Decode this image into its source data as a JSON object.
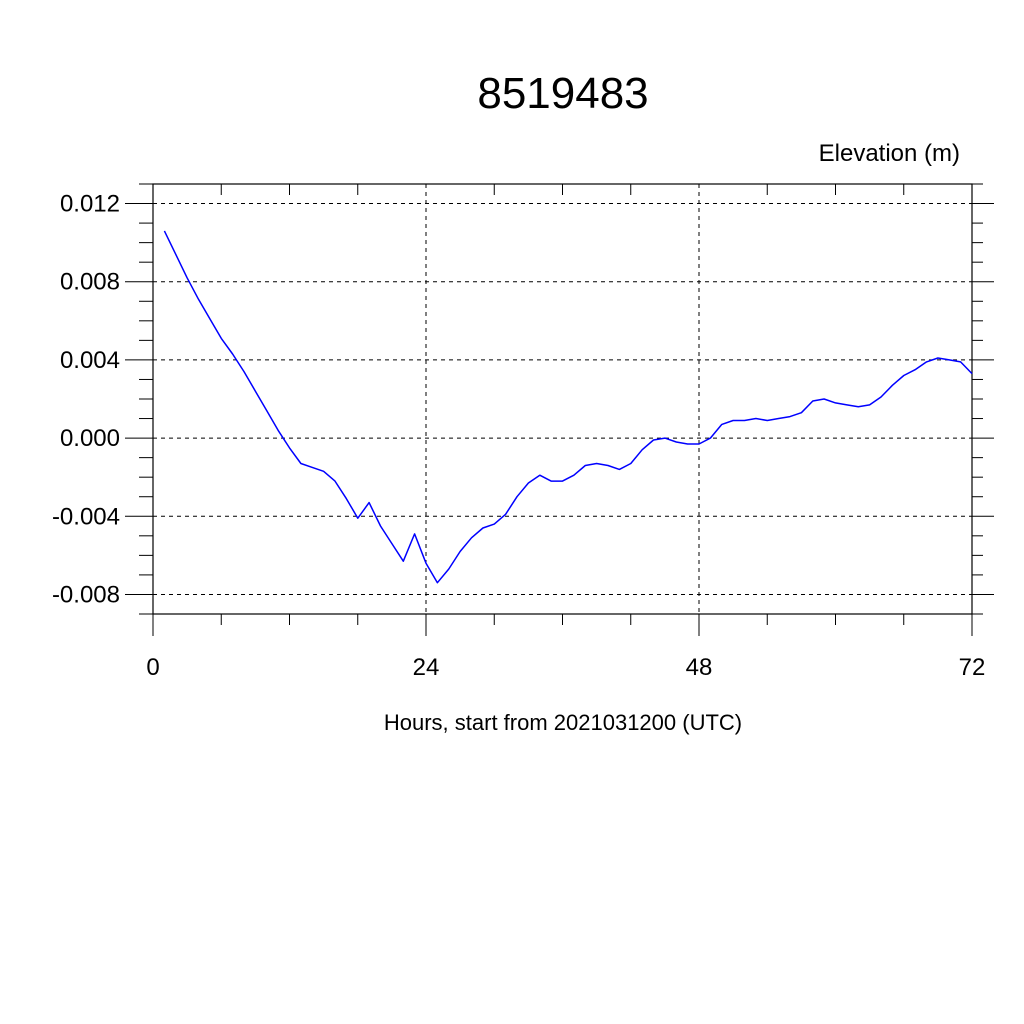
{
  "chart_data": {
    "type": "line",
    "title": "8519483",
    "ylabel": "Elevation (m)",
    "xlabel": "Hours, start from 2021031200 (UTC)",
    "xlim": [
      0,
      72
    ],
    "ylim": [
      -0.009,
      0.013
    ],
    "x_ticks": [
      0,
      24,
      48,
      72
    ],
    "x_tick_labels": [
      "0",
      "24",
      "48",
      "72"
    ],
    "y_ticks": [
      -0.008,
      -0.004,
      0.0,
      0.004,
      0.008,
      0.012
    ],
    "y_tick_labels": [
      "-0.008",
      "-0.004",
      "0.000",
      "0.004",
      "0.008",
      "0.012"
    ],
    "grid": true,
    "line_color": "#0000ff",
    "series": [
      {
        "x": [
          1,
          2,
          3,
          4,
          5,
          6,
          7,
          8,
          9,
          10,
          11,
          12,
          13,
          14,
          15,
          16,
          17,
          18,
          19,
          20,
          21,
          22,
          23,
          24,
          25,
          26,
          27,
          28,
          29,
          30,
          31,
          32,
          33,
          34,
          35,
          36,
          37,
          38,
          39,
          40,
          41,
          42,
          43,
          44,
          45,
          46,
          47,
          48,
          49,
          50,
          51,
          52,
          53,
          54,
          55,
          56,
          57,
          58,
          59,
          60,
          61,
          62,
          63,
          64,
          65,
          66,
          67,
          68,
          69,
          70,
          71,
          72
        ],
        "y": [
          0.0106,
          0.0094,
          0.0082,
          0.0071,
          0.0061,
          0.0051,
          0.0043,
          0.0034,
          0.0024,
          0.0014,
          0.0004,
          -0.0005,
          -0.0013,
          -0.0015,
          -0.0017,
          -0.0022,
          -0.0031,
          -0.0041,
          -0.0033,
          -0.0045,
          -0.0054,
          -0.0063,
          -0.0049,
          -0.0064,
          -0.0074,
          -0.0067,
          -0.0058,
          -0.0051,
          -0.0046,
          -0.0044,
          -0.0039,
          -0.003,
          -0.0023,
          -0.0019,
          -0.0022,
          -0.0022,
          -0.0019,
          -0.0014,
          -0.0013,
          -0.0014,
          -0.0016,
          -0.0013,
          -0.0006,
          -0.0001,
          0.0,
          -0.0002,
          -0.0003,
          -0.0003,
          0.0,
          0.0007,
          0.0009,
          0.0009,
          0.001,
          0.0009,
          0.001,
          0.0011,
          0.0013,
          0.0019,
          0.002,
          0.0018,
          0.0017,
          0.0016,
          0.0017,
          0.0021,
          0.0027,
          0.0032,
          0.0035,
          0.0039,
          0.0041,
          0.004,
          0.0039,
          0.0033
        ]
      }
    ]
  }
}
